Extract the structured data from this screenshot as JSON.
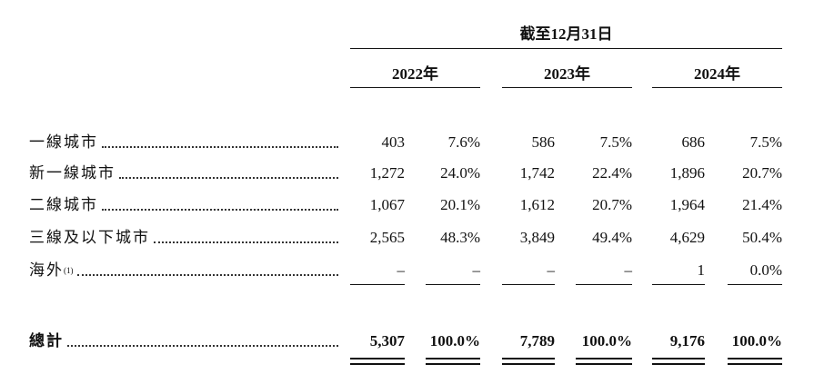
{
  "header": {
    "period": "截至12月31日",
    "years": [
      "2022年",
      "2023年",
      "2024年"
    ]
  },
  "table": {
    "rows": [
      {
        "label": "一線城市",
        "cells": [
          "403",
          "7.6%",
          "586",
          "7.5%",
          "686",
          "7.5%"
        ]
      },
      {
        "label": "新一線城市",
        "cells": [
          "1,272",
          "24.0%",
          "1,742",
          "22.4%",
          "1,896",
          "20.7%"
        ]
      },
      {
        "label": "二線城市",
        "cells": [
          "1,067",
          "20.1%",
          "1,612",
          "20.7%",
          "1,964",
          "21.4%"
        ]
      },
      {
        "label": "三線及以下城市",
        "cells": [
          "2,565",
          "48.3%",
          "3,849",
          "49.4%",
          "4,629",
          "50.4%"
        ]
      },
      {
        "label": "海外",
        "note": "(1)",
        "cells": [
          "–",
          "–",
          "–",
          "–",
          "1",
          "0.0%"
        ]
      }
    ],
    "total": {
      "label": "總計",
      "cells": [
        "5,307",
        "100.0%",
        "7,789",
        "100.0%",
        "9,176",
        "100.0%"
      ]
    }
  }
}
